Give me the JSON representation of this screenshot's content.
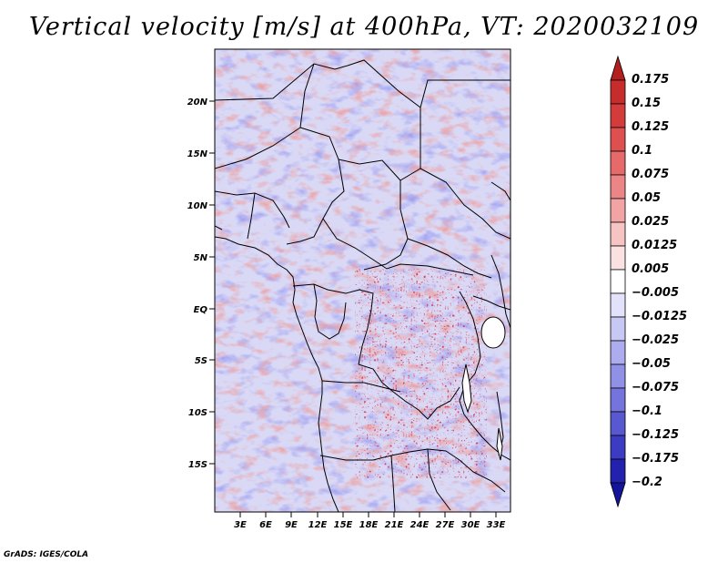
{
  "title": "Vertical velocity [m/s] at 400hPa, VT: 2020032109",
  "footer": "GrADS: IGES/COLA",
  "map": {
    "lat_labels": [
      "20N",
      "15N",
      "10N",
      "5N",
      "EQ",
      "5S",
      "10S",
      "15S"
    ],
    "lon_labels": [
      "3E",
      "6E",
      "9E",
      "12E",
      "15E",
      "18E",
      "21E",
      "24E",
      "27E",
      "30E",
      "33E"
    ]
  },
  "colorbar": {
    "levels": [
      "0.175",
      "0.15",
      "0.125",
      "0.1",
      "0.075",
      "0.05",
      "0.025",
      "0.0125",
      "0.005",
      "−0.005",
      "−0.0125",
      "−0.025",
      "−0.05",
      "−0.075",
      "−0.1",
      "−0.125",
      "−0.175",
      "−0.2"
    ],
    "colors": [
      "#b31e1e",
      "#c72c2c",
      "#d43c3c",
      "#de5050",
      "#e66a6a",
      "#ec8686",
      "#f2a4a4",
      "#f7c4c4",
      "#fbe2e2",
      "#ffffff",
      "#e2e2fb",
      "#c8c8f5",
      "#acacee",
      "#9090e6",
      "#7474dc",
      "#5858d0",
      "#3c3cc2",
      "#2222ae",
      "#14149a"
    ]
  }
}
